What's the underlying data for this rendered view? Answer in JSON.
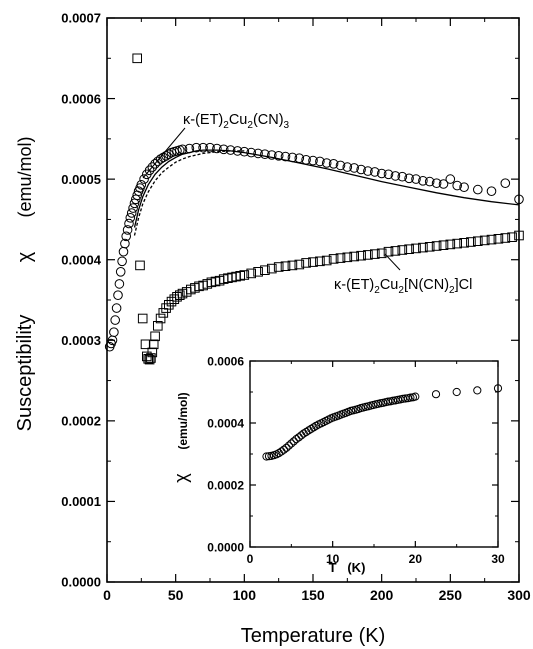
{
  "chart_data": [
    {
      "type": "scatter",
      "xlabel": "Temperature (K)",
      "ylabel_left": "Susceptibility",
      "ylabel_symbol": "χ",
      "ylabel_unit": "(emu/mol)",
      "xlim": [
        0,
        300
      ],
      "ylim": [
        0,
        0.0007
      ],
      "xticks": [
        "0",
        "50",
        "100",
        "150",
        "200",
        "250",
        "300"
      ],
      "yticks": [
        "0.0000",
        "0.0001",
        "0.0002",
        "0.0003",
        "0.0004",
        "0.0005",
        "0.0006",
        "0.0007"
      ],
      "grid": false,
      "annotations": [
        {
          "label_main": "κ-(ET)",
          "sub1": "2",
          "mid": "Cu",
          "sub2": "2",
          "tail": "(CN)",
          "sub3": "3"
        },
        {
          "label_main": "κ-(ET)",
          "sub1": "2",
          "mid": "Cu",
          "sub2": "2",
          "tail": "[N(CN)",
          "sub3": "2",
          "end": "]Cl"
        }
      ],
      "series": [
        {
          "marker": "circle",
          "x": [
            2,
            3,
            4,
            5,
            6,
            7,
            8,
            9,
            10,
            11,
            12,
            13,
            14,
            15,
            16,
            17,
            18,
            19,
            20,
            21,
            22,
            23,
            24,
            25,
            27,
            29,
            31,
            33,
            35,
            37,
            39,
            41,
            43,
            45,
            47,
            49,
            51,
            53,
            55,
            60,
            65,
            70,
            75,
            80,
            85,
            90,
            95,
            100,
            105,
            110,
            115,
            120,
            125,
            130,
            135,
            140,
            145,
            150,
            155,
            160,
            165,
            170,
            175,
            180,
            185,
            190,
            195,
            200,
            205,
            210,
            215,
            220,
            225,
            230,
            235,
            240,
            245,
            250,
            255,
            260,
            270,
            280,
            290,
            300
          ],
          "y": [
            0.000292,
            0.000296,
            0.0003,
            0.00031,
            0.000325,
            0.00034,
            0.000356,
            0.00037,
            0.000385,
            0.000398,
            0.00041,
            0.00042,
            0.000429,
            0.000437,
            0.000445,
            0.000452,
            0.000458,
            0.000464,
            0.00047,
            0.000475,
            0.00048,
            0.000485,
            0.000489,
            0.000493,
            0.0005,
            0.000506,
            0.000511,
            0.000515,
            0.000519,
            0.000522,
            0.000525,
            0.000527,
            0.000529,
            0.000531,
            0.000533,
            0.000534,
            0.000535,
            0.000536,
            0.000537,
            0.000538,
            0.000539,
            0.000539,
            0.000539,
            0.000538,
            0.000537,
            0.000536,
            0.000535,
            0.000534,
            0.000533,
            0.000532,
            0.000531,
            0.00053,
            0.000529,
            0.000528,
            0.000527,
            0.000526,
            0.000524,
            0.000523,
            0.000522,
            0.00052,
            0.000519,
            0.000517,
            0.000515,
            0.000514,
            0.000512,
            0.00051,
            0.000509,
            0.000507,
            0.000506,
            0.000504,
            0.000503,
            0.000501,
            0.0005,
            0.000498,
            0.000497,
            0.000495,
            0.000494,
            0.0005,
            0.000492,
            0.00049,
            0.000487,
            0.000485,
            0.000495,
            0.000475
          ]
        },
        {
          "marker": "square",
          "x": [
            22,
            24,
            26,
            28,
            29,
            30,
            31,
            32,
            33,
            34,
            35,
            37,
            39,
            41,
            43,
            45,
            47,
            49,
            51,
            53,
            55,
            58,
            61,
            64,
            67,
            70,
            73,
            76,
            79,
            82,
            85,
            88,
            91,
            94,
            97,
            100,
            105,
            110,
            115,
            120,
            125,
            130,
            135,
            140,
            145,
            150,
            155,
            160,
            165,
            170,
            175,
            180,
            185,
            190,
            195,
            200,
            205,
            210,
            215,
            220,
            225,
            230,
            235,
            240,
            245,
            250,
            255,
            260,
            265,
            270,
            275,
            280,
            285,
            290,
            295,
            300
          ],
          "y": [
            0.00065,
            0.000393,
            0.000327,
            0.000295,
            0.00028,
            0.000277,
            0.000276,
            0.000278,
            0.000285,
            0.000295,
            0.000305,
            0.000318,
            0.000327,
            0.000334,
            0.00034,
            0.000344,
            0.000348,
            0.000351,
            0.000354,
            0.000356,
            0.000358,
            0.00036,
            0.000363,
            0.000365,
            0.000367,
            0.000368,
            0.00037,
            0.000372,
            0.000373,
            0.000374,
            0.000376,
            0.000377,
            0.000378,
            0.000379,
            0.00038,
            0.000381,
            0.000383,
            0.000385,
            0.000387,
            0.000389,
            0.000391,
            0.000392,
            0.000393,
            0.000394,
            0.000396,
            0.000397,
            0.000398,
            0.000399,
            0.000401,
            0.000402,
            0.000403,
            0.000404,
            0.000405,
            0.000406,
            0.000407,
            0.000408,
            0.00041,
            0.000411,
            0.000412,
            0.000413,
            0.000414,
            0.000415,
            0.000416,
            0.000417,
            0.000418,
            0.000419,
            0.00042,
            0.000421,
            0.000422,
            0.000423,
            0.000424,
            0.000425,
            0.000426,
            0.000427,
            0.000428,
            0.00043
          ]
        },
        {
          "marker": "line",
          "style": "solid",
          "x": [
            20,
            23,
            26,
            30,
            35,
            40,
            45,
            50,
            55,
            60,
            65,
            70,
            75,
            80,
            90,
            100,
            120,
            140,
            160,
            180,
            200,
            220,
            240,
            260,
            280,
            300
          ],
          "y": [
            0.00044,
            0.000462,
            0.000478,
            0.000493,
            0.000506,
            0.000515,
            0.000522,
            0.000527,
            0.000531,
            0.000533,
            0.000535,
            0.000536,
            0.000536,
            0.000536,
            0.000535,
            0.000533,
            0.000527,
            0.00052,
            0.000513,
            0.000505,
            0.000497,
            0.00049,
            0.000483,
            0.000477,
            0.000472,
            0.000468
          ]
        },
        {
          "marker": "line",
          "style": "dashed",
          "x": [
            20,
            23,
            26,
            30,
            35,
            40,
            45,
            50,
            55,
            60,
            65,
            70,
            75,
            80,
            90,
            100
          ],
          "y": [
            0.00043,
            0.000452,
            0.000469,
            0.000484,
            0.000498,
            0.000508,
            0.000515,
            0.000521,
            0.000525,
            0.000528,
            0.00053,
            0.000532,
            0.000533,
            0.000534,
            0.000535,
            0.000535
          ]
        }
      ]
    },
    {
      "type": "scatter",
      "xlabel": "T   (K)",
      "ylabel_symbol": "χ",
      "ylabel_unit": "(emu/mol)",
      "xlim": [
        0,
        30
      ],
      "ylim": [
        0,
        0.0006
      ],
      "xticks": [
        "0",
        "10",
        "20",
        "30"
      ],
      "yticks": [
        "0.0000",
        "0.0002",
        "0.0004",
        "0.0006"
      ],
      "series": [
        {
          "marker": "circle",
          "x": [
            2.0,
            2.3,
            2.6,
            2.9,
            3.2,
            3.5,
            3.8,
            4.1,
            4.4,
            4.7,
            5.0,
            5.3,
            5.6,
            5.9,
            6.2,
            6.5,
            6.8,
            7.1,
            7.4,
            7.7,
            8.0,
            8.3,
            8.6,
            8.9,
            9.2,
            9.5,
            9.8,
            10.1,
            10.4,
            10.7,
            11.0,
            11.3,
            11.6,
            11.9,
            12.2,
            12.5,
            12.8,
            13.1,
            13.4,
            13.7,
            14.0,
            14.3,
            14.6,
            14.9,
            15.2,
            15.5,
            15.8,
            16.1,
            16.4,
            16.7,
            17.0,
            17.3,
            17.6,
            17.9,
            18.2,
            18.5,
            18.8,
            19.1,
            19.4,
            19.7,
            20.0,
            22.5,
            25.0,
            27.5,
            30.0
          ],
          "y": [
            0.000292,
            0.000293,
            0.000294,
            0.000296,
            0.000299,
            0.000303,
            0.000308,
            0.000314,
            0.00032,
            0.000327,
            0.000334,
            0.000341,
            0.000348,
            0.000354,
            0.00036,
            0.000366,
            0.000371,
            0.000376,
            0.000381,
            0.000386,
            0.000391,
            0.000395,
            0.000399,
            0.000403,
            0.000407,
            0.000411,
            0.000415,
            0.000418,
            0.000421,
            0.000424,
            0.000427,
            0.00043,
            0.000433,
            0.000436,
            0.000439,
            0.000441,
            0.000443,
            0.000445,
            0.000448,
            0.00045,
            0.000452,
            0.000454,
            0.000456,
            0.000458,
            0.00046,
            0.000462,
            0.000464,
            0.000465,
            0.000467,
            0.000469,
            0.00047,
            0.000472,
            0.000473,
            0.000475,
            0.000476,
            0.000478,
            0.000479,
            0.00048,
            0.000482,
            0.000483,
            0.000485,
            0.000493,
            0.0005,
            0.000505,
            0.000512
          ]
        }
      ]
    }
  ]
}
